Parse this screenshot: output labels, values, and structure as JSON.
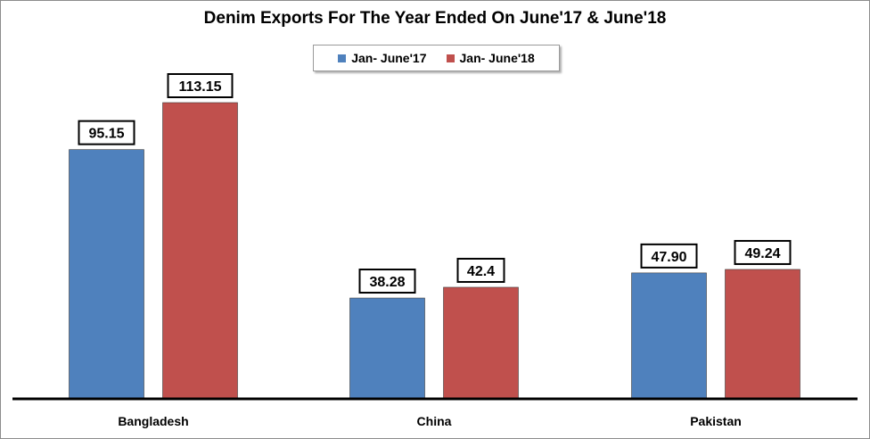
{
  "colors": {
    "series1": "#4f81bd",
    "series2": "#c0504d",
    "axis": "#000000"
  },
  "chart_data": {
    "type": "bar",
    "title": "Denim Exports For The Year Ended On June'17 & June'18",
    "categories": [
      "Bangladesh",
      "China",
      "Pakistan"
    ],
    "series": [
      {
        "name": "Jan- June'17",
        "values": [
          95.15,
          38.28,
          47.9
        ],
        "labels": [
          "95.15",
          "38.28",
          "47.90"
        ]
      },
      {
        "name": "Jan- June'18",
        "values": [
          113.15,
          42.4,
          49.24
        ],
        "labels": [
          "113.15",
          "42.4",
          "49.24"
        ]
      }
    ],
    "ylim": [
      0,
      120
    ],
    "legend": "top-center",
    "grid": false,
    "xlabel": "",
    "ylabel": ""
  }
}
